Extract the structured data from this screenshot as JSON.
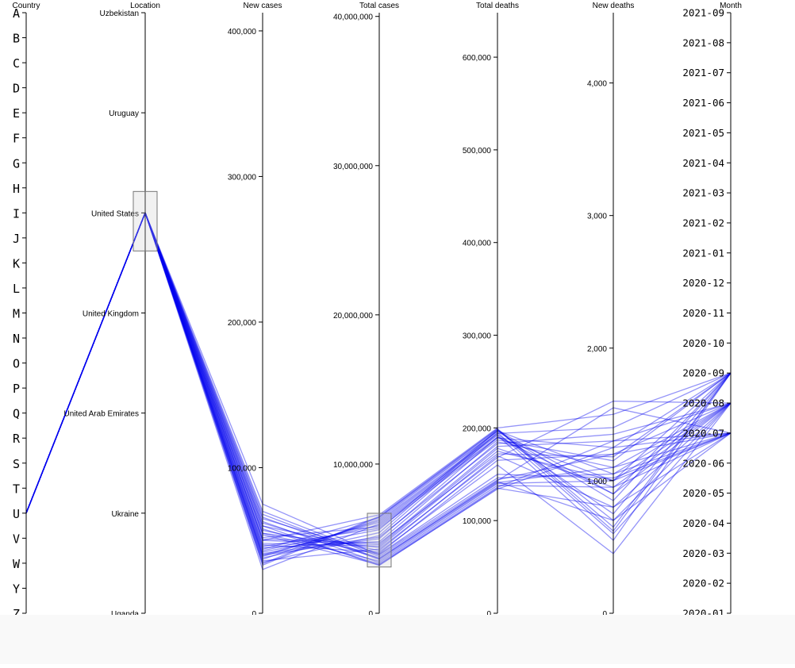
{
  "chart_data": {
    "type": "parallel-coordinates",
    "line_color": "#0000ee",
    "axes": [
      {
        "key": "country",
        "title": "Country",
        "scale": "categorical",
        "categories": [
          "A",
          "B",
          "C",
          "D",
          "E",
          "F",
          "G",
          "H",
          "I",
          "J",
          "K",
          "L",
          "M",
          "N",
          "O",
          "P",
          "Q",
          "R",
          "S",
          "T",
          "U",
          "V",
          "W",
          "Y",
          "Z"
        ]
      },
      {
        "key": "location",
        "title": "Location",
        "scale": "categorical",
        "categories": [
          "Uganda",
          "Ukraine",
          "United Arab Emirates",
          "United Kingdom",
          "United States",
          "Uruguay",
          "Uzbekistan"
        ],
        "brush": [
          "United States"
        ]
      },
      {
        "key": "new_cases",
        "title": "New cases",
        "scale": "linear",
        "domain": [
          0,
          400000
        ],
        "ticks": [
          "0",
          "100,000",
          "200,000",
          "300,000",
          "400,000"
        ],
        "tick_values": [
          0,
          100000,
          200000,
          300000,
          400000
        ]
      },
      {
        "key": "total_cases",
        "title": "Total cases",
        "scale": "linear",
        "domain": [
          0,
          40000000
        ],
        "ticks": [
          "0",
          "10,000,000",
          "20,000,000",
          "30,000,000",
          "40,000,000"
        ],
        "tick_values": [
          0,
          10000000,
          20000000,
          30000000,
          40000000
        ],
        "brush": [
          3100000,
          6700000
        ]
      },
      {
        "key": "total_deaths",
        "title": "Total deaths",
        "scale": "linear",
        "domain": [
          0,
          600000
        ],
        "ticks": [
          "0",
          "100,000",
          "200,000",
          "300,000",
          "400,000",
          "500,000",
          "600,000"
        ],
        "tick_values": [
          0,
          100000,
          200000,
          300000,
          400000,
          500000,
          600000
        ]
      },
      {
        "key": "new_deaths",
        "title": "New deaths",
        "scale": "linear",
        "domain": [
          0,
          4000
        ],
        "ticks": [
          "0",
          "1,000",
          "2,000",
          "3,000",
          "4,000"
        ],
        "tick_values": [
          0,
          1000,
          2000,
          3000,
          4000
        ]
      },
      {
        "key": "month",
        "title": "Month",
        "scale": "categorical",
        "categories": [
          "2020-01",
          "2020-02",
          "2020-03",
          "2020-04",
          "2020-05",
          "2020-06",
          "2020-07",
          "2020-08",
          "2020-09",
          "2020-10",
          "2020-11",
          "2020-12",
          "2021-01",
          "2021-02",
          "2021-03",
          "2021-04",
          "2021-05",
          "2021-06",
          "2021-07",
          "2021-08",
          "2021-09"
        ]
      }
    ],
    "records": [
      {
        "country": "U",
        "location": "United States",
        "new_cases": 40000,
        "total_cases": 5000000,
        "total_deaths": 190000,
        "new_deaths": 900,
        "month": "2020-08"
      },
      {
        "country": "U",
        "location": "United States",
        "new_cases": 45000,
        "total_cases": 4800000,
        "total_deaths": 185000,
        "new_deaths": 1100,
        "month": "2020-08"
      },
      {
        "country": "U",
        "location": "United States",
        "new_cases": 50000,
        "total_cases": 4600000,
        "total_deaths": 180000,
        "new_deaths": 1300,
        "month": "2020-08"
      },
      {
        "country": "U",
        "location": "United States",
        "new_cases": 55000,
        "total_cases": 4400000,
        "total_deaths": 175000,
        "new_deaths": 1000,
        "month": "2020-08"
      },
      {
        "country": "U",
        "location": "United States",
        "new_cases": 60000,
        "total_cases": 4200000,
        "total_deaths": 170000,
        "new_deaths": 800,
        "month": "2020-08"
      },
      {
        "country": "U",
        "location": "United States",
        "new_cases": 35000,
        "total_cases": 5200000,
        "total_deaths": 195000,
        "new_deaths": 600,
        "month": "2020-08"
      },
      {
        "country": "U",
        "location": "United States",
        "new_cases": 38000,
        "total_cases": 5400000,
        "total_deaths": 197000,
        "new_deaths": 1050,
        "month": "2020-08"
      },
      {
        "country": "U",
        "location": "United States",
        "new_cases": 65000,
        "total_cases": 4000000,
        "total_deaths": 165000,
        "new_deaths": 1200,
        "month": "2020-08"
      },
      {
        "country": "U",
        "location": "United States",
        "new_cases": 42000,
        "total_cases": 5600000,
        "total_deaths": 198000,
        "new_deaths": 700,
        "month": "2020-08"
      },
      {
        "country": "U",
        "location": "United States",
        "new_cases": 48000,
        "total_cases": 4500000,
        "total_deaths": 178000,
        "new_deaths": 950,
        "month": "2020-08"
      },
      {
        "country": "U",
        "location": "United States",
        "new_cases": 43000,
        "total_cases": 5900000,
        "total_deaths": 190000,
        "new_deaths": 1000,
        "month": "2020-09"
      },
      {
        "country": "U",
        "location": "United States",
        "new_cases": 40000,
        "total_cases": 6100000,
        "total_deaths": 193000,
        "new_deaths": 750,
        "month": "2020-09"
      },
      {
        "country": "U",
        "location": "United States",
        "new_cases": 37000,
        "total_cases": 6300000,
        "total_deaths": 196000,
        "new_deaths": 850,
        "month": "2020-09"
      },
      {
        "country": "U",
        "location": "United States",
        "new_cases": 34000,
        "total_cases": 6500000,
        "total_deaths": 199000,
        "new_deaths": 650,
        "month": "2020-09"
      },
      {
        "country": "U",
        "location": "United States",
        "new_cases": 46000,
        "total_cases": 5700000,
        "total_deaths": 187000,
        "new_deaths": 1150,
        "month": "2020-09"
      },
      {
        "country": "U",
        "location": "United States",
        "new_cases": 52000,
        "total_cases": 5800000,
        "total_deaths": 189000,
        "new_deaths": 1250,
        "month": "2020-09"
      },
      {
        "country": "U",
        "location": "United States",
        "new_cases": 30000,
        "total_cases": 6000000,
        "total_deaths": 192000,
        "new_deaths": 550,
        "month": "2020-09"
      },
      {
        "country": "U",
        "location": "United States",
        "new_cases": 39000,
        "total_cases": 6200000,
        "total_deaths": 194000,
        "new_deaths": 1400,
        "month": "2020-09"
      },
      {
        "country": "U",
        "location": "United States",
        "new_cases": 44000,
        "total_cases": 6400000,
        "total_deaths": 197000,
        "new_deaths": 900,
        "month": "2020-09"
      },
      {
        "country": "U",
        "location": "United States",
        "new_cases": 50000,
        "total_cases": 6600000,
        "total_deaths": 200000,
        "new_deaths": 1500,
        "month": "2020-09"
      },
      {
        "country": "U",
        "location": "United States",
        "new_cases": 60000,
        "total_cases": 3200000,
        "total_deaths": 135000,
        "new_deaths": 800,
        "month": "2020-07"
      },
      {
        "country": "U",
        "location": "United States",
        "new_cases": 63000,
        "total_cases": 3400000,
        "total_deaths": 138000,
        "new_deaths": 950,
        "month": "2020-07"
      },
      {
        "country": "U",
        "location": "United States",
        "new_cases": 66000,
        "total_cases": 3600000,
        "total_deaths": 141000,
        "new_deaths": 1100,
        "month": "2020-07"
      },
      {
        "country": "U",
        "location": "United States",
        "new_cases": 70000,
        "total_cases": 3800000,
        "total_deaths": 144000,
        "new_deaths": 1200,
        "month": "2020-07"
      },
      {
        "country": "U",
        "location": "United States",
        "new_cases": 58000,
        "total_cases": 3300000,
        "total_deaths": 136000,
        "new_deaths": 1300,
        "month": "2020-07"
      },
      {
        "country": "U",
        "location": "United States",
        "new_cases": 55000,
        "total_cases": 3500000,
        "total_deaths": 140000,
        "new_deaths": 1000,
        "month": "2020-07"
      },
      {
        "country": "U",
        "location": "United States",
        "new_cases": 62000,
        "total_cases": 3700000,
        "total_deaths": 142000,
        "new_deaths": 700,
        "month": "2020-07"
      },
      {
        "country": "U",
        "location": "United States",
        "new_cases": 75000,
        "total_cases": 3900000,
        "total_deaths": 146000,
        "new_deaths": 1050,
        "month": "2020-07"
      },
      {
        "country": "U",
        "location": "United States",
        "new_cases": 68000,
        "total_cases": 3650000,
        "total_deaths": 143000,
        "new_deaths": 1550,
        "month": "2020-07"
      },
      {
        "country": "U",
        "location": "United States",
        "new_cases": 54000,
        "total_cases": 3250000,
        "total_deaths": 134000,
        "new_deaths": 1250,
        "month": "2020-07"
      },
      {
        "country": "U",
        "location": "United States",
        "new_cases": 47000,
        "total_cases": 4100000,
        "total_deaths": 160000,
        "new_deaths": 450,
        "month": "2020-08"
      },
      {
        "country": "U",
        "location": "United States",
        "new_cases": 36000,
        "total_cases": 4300000,
        "total_deaths": 168000,
        "new_deaths": 1600,
        "month": "2020-08"
      },
      {
        "country": "U",
        "location": "United States",
        "new_cases": 51000,
        "total_cases": 4700000,
        "total_deaths": 172000,
        "new_deaths": 1180,
        "month": "2020-09"
      },
      {
        "country": "U",
        "location": "United States",
        "new_cases": 57000,
        "total_cases": 3950000,
        "total_deaths": 150000,
        "new_deaths": 1020,
        "month": "2020-07"
      },
      {
        "country": "U",
        "location": "United States",
        "new_cases": 41000,
        "total_cases": 5100000,
        "total_deaths": 183000,
        "new_deaths": 1350,
        "month": "2020-08"
      },
      {
        "country": "U",
        "location": "United States",
        "new_cases": 33000,
        "total_cases": 6450000,
        "total_deaths": 198500,
        "new_deaths": 620,
        "month": "2020-09"
      }
    ]
  }
}
